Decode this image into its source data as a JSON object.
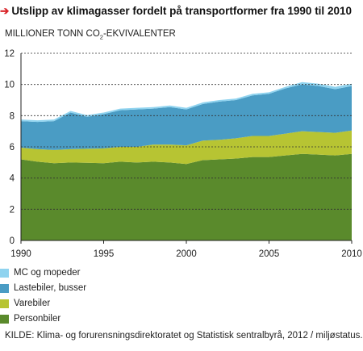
{
  "header": {
    "title": "Utslipp av klimagasser fordelt på transportformer fra 1990 til 2010",
    "unit_prefix": "MILLIONER TONN CO",
    "unit_sub": "2",
    "unit_suffix": "-EKVIVALENTER"
  },
  "legend": [
    {
      "label": "MC og mopeder",
      "color": "#8fd3ef"
    },
    {
      "label": "Lastebiler, busser",
      "color": "#4a9cc4"
    },
    {
      "label": "Varebiler",
      "color": "#b7c433"
    },
    {
      "label": "Personbiler",
      "color": "#5a8a2c"
    }
  ],
  "source": "KILDE: Klima- og forurensningsdirektoratet og Statistisk sentralbyrå, 2012 / miljøstatus.no",
  "chart_data": {
    "type": "area",
    "stacked": true,
    "x": [
      1990,
      1991,
      1992,
      1993,
      1994,
      1995,
      1996,
      1997,
      1998,
      1999,
      2000,
      2001,
      2002,
      2003,
      2004,
      2005,
      2006,
      2007,
      2008,
      2009,
      2010
    ],
    "series": [
      {
        "name": "Personbiler",
        "color": "#5a8a2c",
        "values": [
          5.2,
          5.05,
          4.95,
          5.0,
          4.98,
          4.95,
          5.05,
          5.0,
          5.05,
          5.0,
          4.9,
          5.15,
          5.2,
          5.25,
          5.35,
          5.35,
          5.45,
          5.55,
          5.5,
          5.45,
          5.55
        ]
      },
      {
        "name": "Varebiler",
        "color": "#b7c433",
        "values": [
          0.75,
          0.8,
          0.85,
          0.85,
          0.9,
          0.95,
          0.95,
          1.0,
          1.1,
          1.15,
          1.2,
          1.25,
          1.25,
          1.3,
          1.35,
          1.35,
          1.4,
          1.45,
          1.45,
          1.45,
          1.5
        ]
      },
      {
        "name": "Lastebiler, busser",
        "color": "#4a9cc4",
        "values": [
          1.7,
          1.75,
          1.85,
          2.35,
          2.05,
          2.2,
          2.35,
          2.4,
          2.3,
          2.4,
          2.3,
          2.35,
          2.45,
          2.45,
          2.6,
          2.7,
          2.9,
          3.0,
          2.95,
          2.8,
          2.85
        ]
      },
      {
        "name": "MC og mopeder",
        "color": "#8fd3ef",
        "values": [
          0.1,
          0.1,
          0.1,
          0.1,
          0.1,
          0.1,
          0.1,
          0.1,
          0.1,
          0.1,
          0.1,
          0.1,
          0.1,
          0.1,
          0.1,
          0.1,
          0.1,
          0.15,
          0.15,
          0.15,
          0.15
        ]
      }
    ],
    "ylim": [
      0,
      12
    ],
    "yticks": [
      0,
      2,
      4,
      6,
      8,
      10,
      12
    ],
    "xticks": [
      1990,
      1995,
      2000,
      2005,
      2010
    ],
    "grid": "dotted horizontal",
    "legend_position": "bottom-left"
  }
}
